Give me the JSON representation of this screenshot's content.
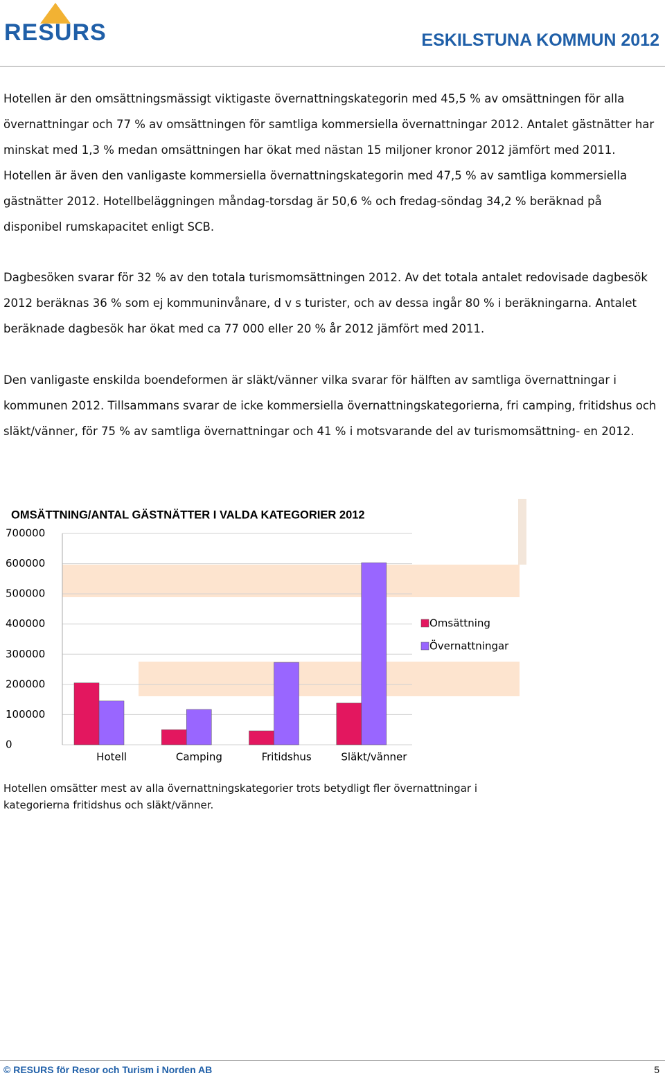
{
  "header": {
    "logo": "RESURS",
    "title": "ESKILSTUNA KOMMUN 2012"
  },
  "paragraphs": [
    "Hotellen är den omsättningsmässigt viktigaste övernattningskategorin med 45,5 % av omsättningen för alla övernattningar och 77 % av omsättningen för samtliga kommersiella övernattningar 2012. Antalet gästnätter har minskat med 1,3 % medan omsättningen har ökat med nästan 15 miljoner kronor 2012 jämfört med 2011. Hotellen är även den vanligaste kommersiella övernattningskategorin med 47,5 % av samtliga kommersiella gästnätter 2012. Hotellbeläggningen måndag-torsdag är 50,6 % och fredag-söndag 34,2 % beräknad på disponibel rumskapacitet enligt SCB.",
    "Dagbesöken svarar för 32 % av den totala turismomsättningen 2012. Av det totala antalet redovisade dagbesök 2012 beräknas 36 % som ej kommuninvånare, d v s turister, och av dessa ingår 80 % i beräkningarna. Antalet beräknade dagbesök har ökat med ca 77 000 eller 20 % år 2012 jämfört med 2011.",
    "Den vanligaste enskilda boendeformen är släkt/vänner vilka svarar för hälften av samtliga övernattningar i kommunen 2012. Tillsammans svarar de icke kommersiella övernattningskategorierna, fri camping, fritidshus och släkt/vänner, för 75 % av samtliga övernattningar och 41 % i motsvarande del av turismomsättning- en 2012."
  ],
  "chart_data": {
    "type": "bar",
    "title": "OMSÄTTNING/ANTAL GÄSTNÄTTER I VALDA KATEGORIER 2012",
    "categories": [
      "Hotell",
      "Camping",
      "Fritidshus",
      "Släkt/vänner"
    ],
    "series": [
      {
        "name": "Omsättning",
        "color": "#e3175f",
        "values": [
          205000,
          50000,
          46000,
          138000
        ]
      },
      {
        "name": "Övernattningar",
        "color": "#9966ff",
        "values": [
          145000,
          117000,
          273000,
          603000
        ]
      }
    ],
    "ylim": [
      0,
      700000
    ],
    "yticks": [
      0,
      100000,
      200000,
      300000,
      400000,
      500000,
      600000,
      700000
    ],
    "grid": true,
    "legend": "right"
  },
  "caption": "Hotellen omsätter mest av alla övernattningskategorier trots betydligt fler övernattningar i kategorierna fritidshus och släkt/vänner.",
  "footer": {
    "text": "© RESURS för Resor och Turism i Norden AB",
    "page": "5"
  }
}
